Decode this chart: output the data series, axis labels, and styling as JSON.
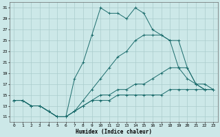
{
  "xlabel": "Humidex (Indice chaleur)",
  "xlim": [
    -0.5,
    23.5
  ],
  "ylim": [
    10,
    32
  ],
  "yticks": [
    11,
    13,
    15,
    17,
    19,
    21,
    23,
    25,
    27,
    29,
    31
  ],
  "xticks": [
    0,
    1,
    2,
    3,
    4,
    5,
    6,
    7,
    8,
    9,
    10,
    11,
    12,
    13,
    14,
    15,
    16,
    17,
    18,
    19,
    20,
    21,
    22,
    23
  ],
  "bg_color": "#cce8e8",
  "grid_color": "#aacccc",
  "line_color": "#1a6b6b",
  "lines": [
    {
      "x": [
        0,
        1,
        2,
        3,
        4,
        5,
        6,
        7,
        8,
        9,
        10,
        11,
        12,
        13,
        14,
        15,
        16,
        17,
        18,
        19,
        20,
        21,
        22
      ],
      "y": [
        14,
        14,
        13,
        13,
        12,
        11,
        11,
        18,
        21,
        26,
        31,
        30,
        30,
        29,
        31,
        30,
        27,
        26,
        25,
        20,
        18,
        17,
        16
      ]
    },
    {
      "x": [
        0,
        1,
        2,
        3,
        4,
        5,
        6,
        7,
        8,
        9,
        10,
        11,
        12,
        13,
        14,
        15,
        16,
        17,
        18,
        19,
        20,
        21,
        22,
        23
      ],
      "y": [
        14,
        14,
        13,
        13,
        12,
        11,
        11,
        12,
        14,
        16,
        18,
        20,
        22,
        23,
        25,
        26,
        26,
        26,
        25,
        25,
        20,
        17,
        17,
        16
      ]
    },
    {
      "x": [
        0,
        1,
        2,
        3,
        4,
        5,
        6,
        7,
        8,
        9,
        10,
        11,
        12,
        13,
        14,
        15,
        16,
        17,
        18,
        19,
        20,
        21,
        22,
        23
      ],
      "y": [
        14,
        14,
        13,
        13,
        12,
        11,
        11,
        12,
        13,
        14,
        15,
        15,
        16,
        16,
        17,
        17,
        18,
        19,
        20,
        20,
        20,
        17,
        16,
        16
      ]
    },
    {
      "x": [
        0,
        1,
        2,
        3,
        4,
        5,
        6,
        7,
        8,
        9,
        10,
        11,
        12,
        13,
        14,
        15,
        16,
        17,
        18,
        19,
        20,
        21,
        22,
        23
      ],
      "y": [
        14,
        14,
        13,
        13,
        12,
        11,
        11,
        12,
        13,
        14,
        14,
        14,
        15,
        15,
        15,
        15,
        15,
        15,
        16,
        16,
        16,
        16,
        16,
        16
      ]
    }
  ]
}
